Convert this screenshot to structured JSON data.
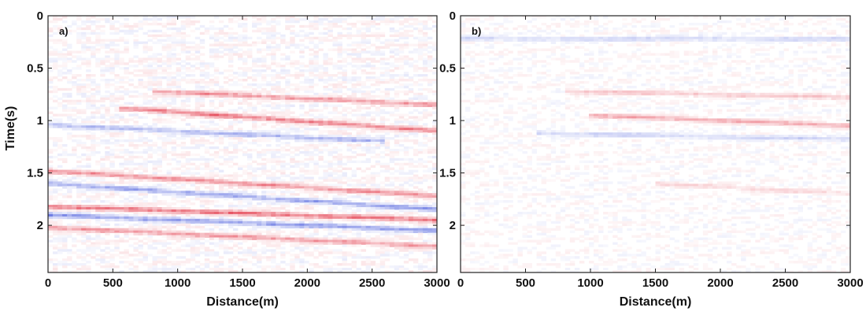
{
  "chart_data": [
    {
      "type": "heatmap",
      "panel_label": "a)",
      "xlabel": "Distance(m)",
      "ylabel": "Time(s)",
      "xlim": [
        0,
        3000
      ],
      "ylim": [
        0,
        2.45
      ],
      "y_inverted": true,
      "x_ticks": [
        "0",
        "500",
        "1000",
        "1500",
        "2000",
        "2500",
        "3000"
      ],
      "y_ticks": [
        "0",
        "0.5",
        "1",
        "1.5",
        "2"
      ],
      "colormap": {
        "negative": "#2a3fd6",
        "zero": "#ffffff",
        "positive": "#e0283a"
      },
      "events": [
        {
          "x": [
            800,
            3000
          ],
          "t": [
            0.72,
            0.85
          ],
          "amp": 0.55
        },
        {
          "x": [
            550,
            3000
          ],
          "t": [
            0.88,
            1.1
          ],
          "amp": 0.7
        },
        {
          "x": [
            0,
            2600
          ],
          "t": [
            1.04,
            1.2
          ],
          "amp": -0.45
        },
        {
          "x": [
            0,
            3000
          ],
          "t": [
            1.48,
            1.72
          ],
          "amp": 0.6
        },
        {
          "x": [
            0,
            3000
          ],
          "t": [
            1.6,
            1.85
          ],
          "amp": -0.55
        },
        {
          "x": [
            0,
            3000
          ],
          "t": [
            1.82,
            1.95
          ],
          "amp": 0.75
        },
        {
          "x": [
            0,
            3000
          ],
          "t": [
            1.9,
            2.05
          ],
          "amp": -0.6
        },
        {
          "x": [
            0,
            3000
          ],
          "t": [
            2.02,
            2.2
          ],
          "amp": 0.55
        }
      ]
    },
    {
      "type": "heatmap",
      "panel_label": "b)",
      "xlabel": "Distance(m)",
      "ylabel": "",
      "xlim": [
        0,
        3000
      ],
      "ylim": [
        0,
        2.45
      ],
      "y_inverted": true,
      "x_ticks": [
        "0",
        "500",
        "1000",
        "1500",
        "2000",
        "2500",
        "3000"
      ],
      "y_ticks": [
        "0",
        "0.5",
        "1",
        "1.5",
        "2"
      ],
      "colormap": {
        "negative": "#2a3fd6",
        "zero": "#ffffff",
        "positive": "#e0283a"
      },
      "events": [
        {
          "x": [
            0,
            3000
          ],
          "t": [
            0.22,
            0.22
          ],
          "amp": -0.25
        },
        {
          "x": [
            800,
            3000
          ],
          "t": [
            0.72,
            0.78
          ],
          "amp": 0.3
        },
        {
          "x": [
            1000,
            3000
          ],
          "t": [
            0.95,
            1.05
          ],
          "amp": 0.45
        },
        {
          "x": [
            600,
            3000
          ],
          "t": [
            1.12,
            1.18
          ],
          "amp": -0.25
        },
        {
          "x": [
            1500,
            3000
          ],
          "t": [
            1.6,
            1.7
          ],
          "amp": 0.2
        }
      ]
    }
  ]
}
